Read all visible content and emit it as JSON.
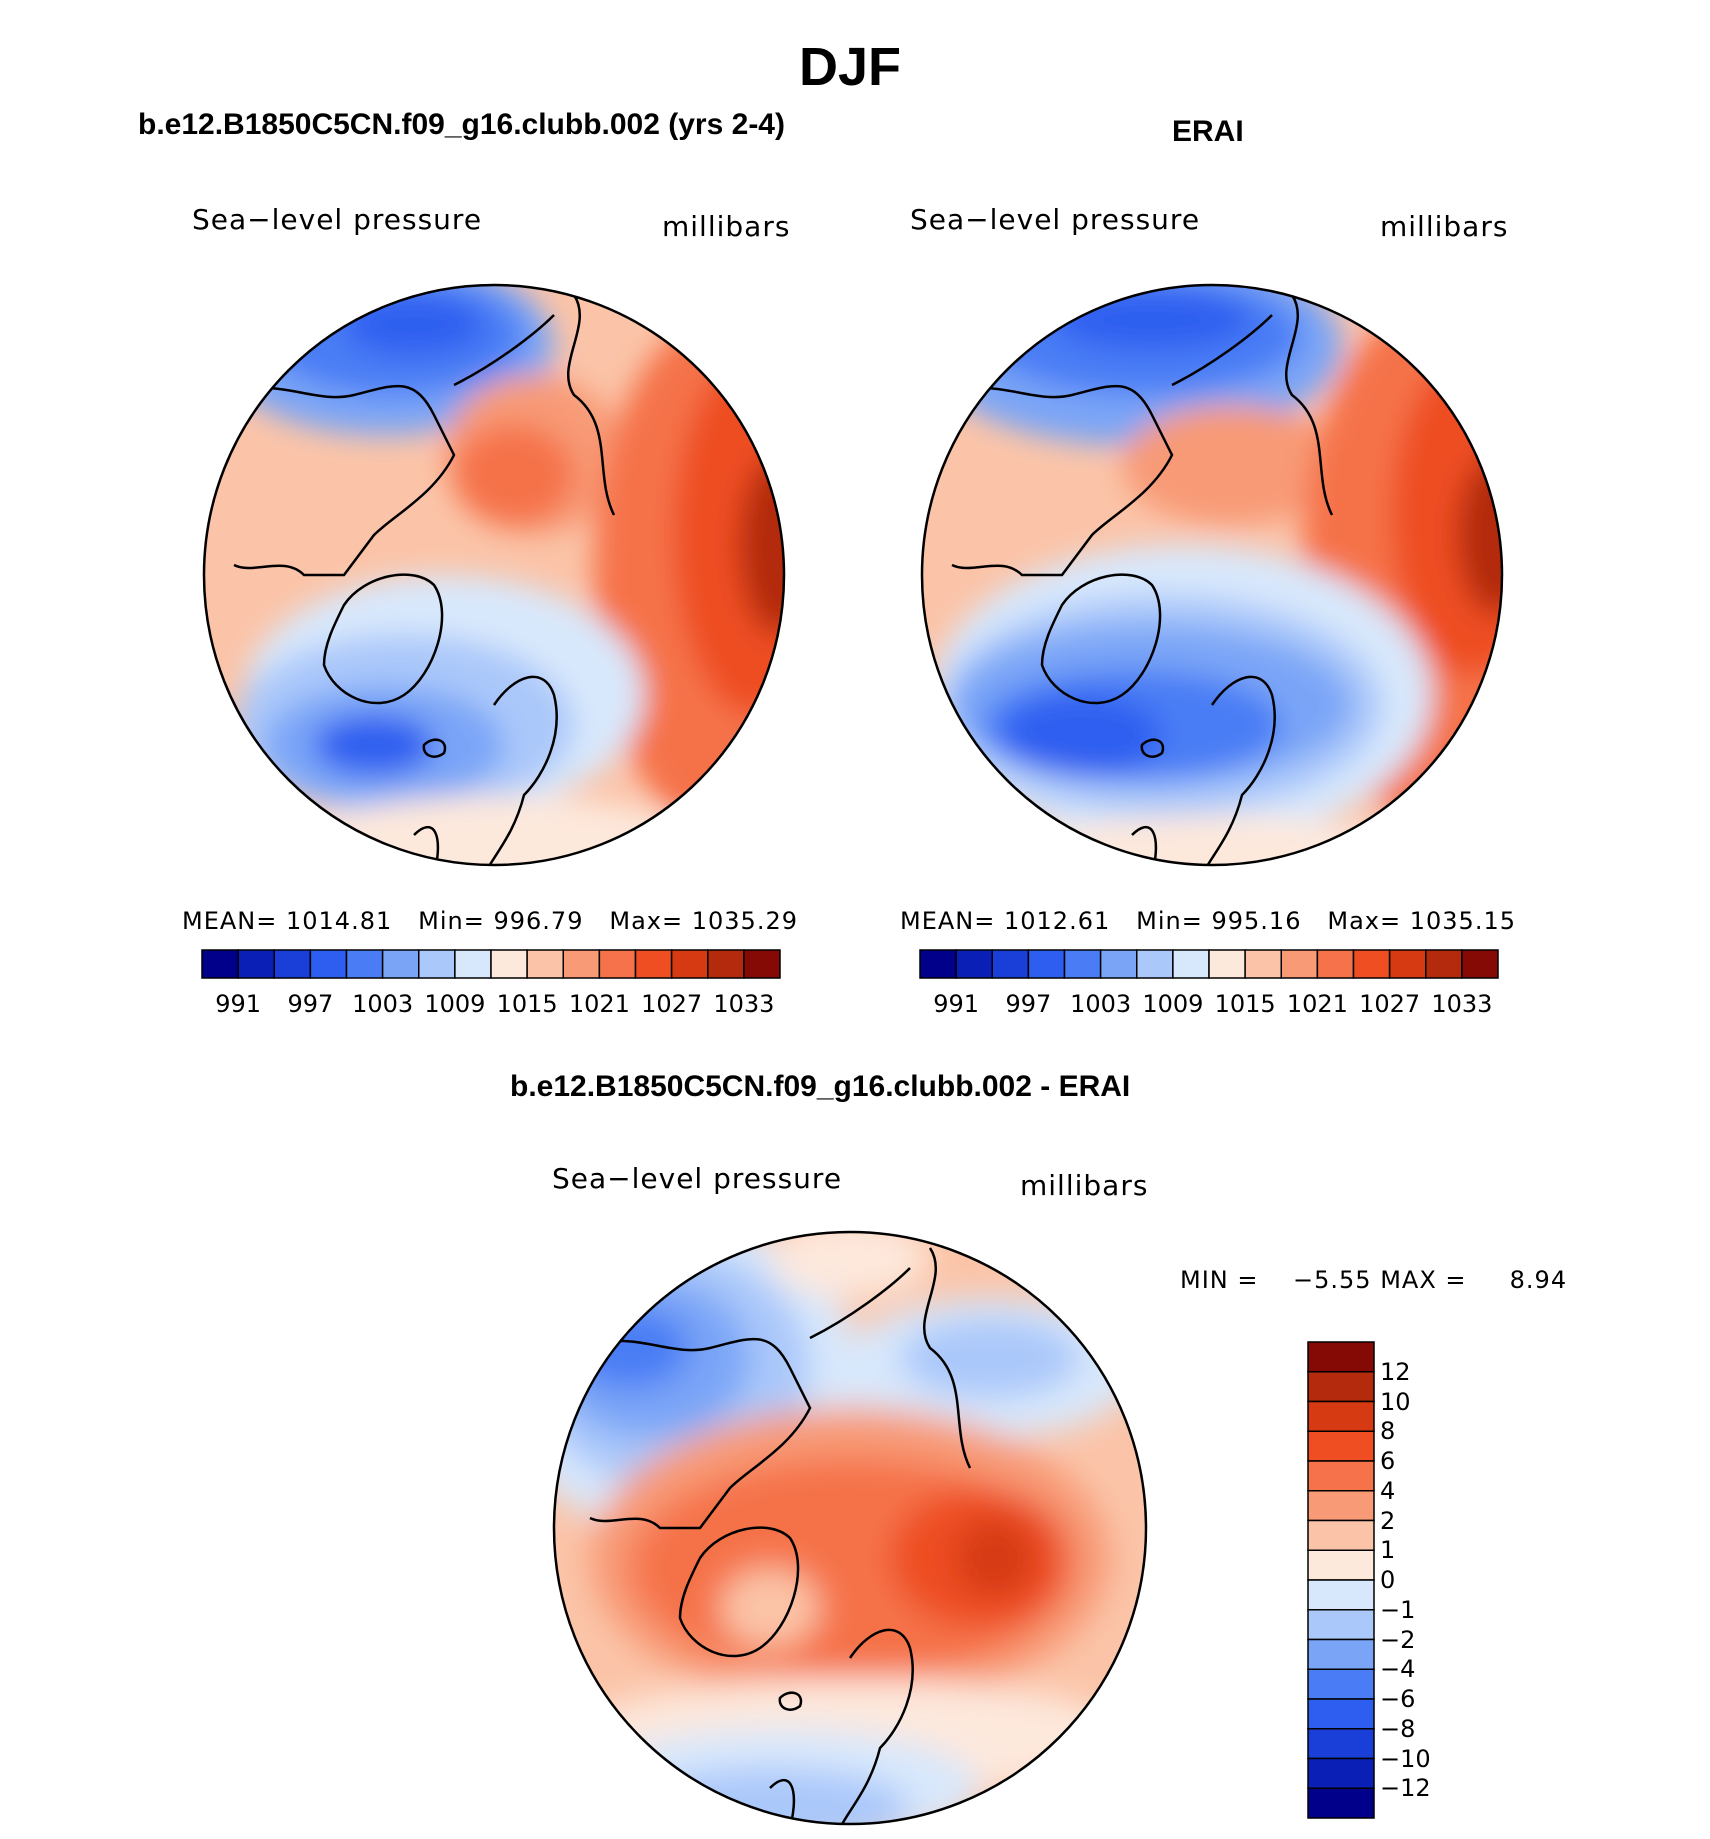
{
  "title": "DJF",
  "panels": [
    {
      "id": "model",
      "heading": "b.e12.B1850C5CN.f09_g16.clubb.002 (yrs 2-4)",
      "variable": "Sea−level pressure",
      "units": "millibars",
      "stats": {
        "mean_label": "MEAN=",
        "mean": "1014.81",
        "min_label": "Min=",
        "min": "996.79",
        "max_label": "Max=",
        "max": "1035.29"
      }
    },
    {
      "id": "obs",
      "heading": "ERAI",
      "variable": "Sea−level pressure",
      "units": "millibars",
      "stats": {
        "mean_label": "MEAN=",
        "mean": "1012.61",
        "min_label": "Min=",
        "min": "995.16",
        "max_label": "Max=",
        "max": "1035.15"
      }
    },
    {
      "id": "diff",
      "heading": "b.e12.B1850C5CN.f09_g16.clubb.002 - ERAI",
      "variable": "Sea−level pressure",
      "units": "millibars",
      "stats": {
        "min_label": "MIN =",
        "min": "−5.55",
        "max_label": "MAX =",
        "max": "8.94"
      }
    }
  ],
  "colorbar_abs": {
    "ticks": [
      "991",
      "997",
      "1003",
      "1009",
      "1015",
      "1021",
      "1027",
      "1033"
    ],
    "colors": [
      "#00008b",
      "#0a1fb5",
      "#1a3fd8",
      "#2e5ef0",
      "#4a7df5",
      "#7aa5f7",
      "#aac8fa",
      "#d8e8fc",
      "#fde8dc",
      "#fbc4a8",
      "#f89a76",
      "#f5724a",
      "#ee4e22",
      "#d63a12",
      "#b32a0c",
      "#850a05"
    ]
  },
  "colorbar_diff": {
    "ticks": [
      "12",
      "10",
      "8",
      "6",
      "4",
      "2",
      "1",
      "0",
      "−1",
      "−2",
      "−4",
      "−6",
      "−8",
      "−10",
      "−12"
    ],
    "colors": [
      "#850a05",
      "#b32a0c",
      "#d63a12",
      "#ee4e22",
      "#f5724a",
      "#f89a76",
      "#fbc4a8",
      "#fde8dc",
      "#d8e8fc",
      "#aac8fa",
      "#7aa5f7",
      "#4a7df5",
      "#2e5ef0",
      "#1a3fd8",
      "#0a1fb5",
      "#00008b"
    ]
  }
}
